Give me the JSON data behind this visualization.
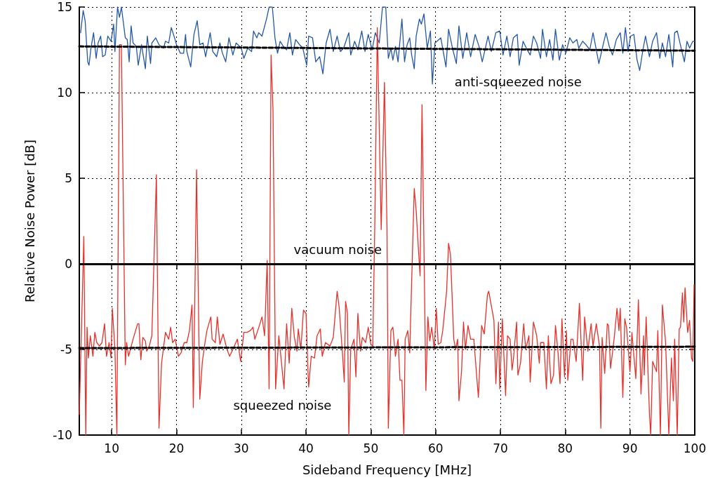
{
  "chart_data": {
    "type": "line",
    "xlabel": "Sideband Frequency [MHz]",
    "ylabel": "Relative Noise Power [dB]",
    "xlim": [
      5,
      100
    ],
    "ylim": [
      -10,
      15
    ],
    "xticks": [
      10,
      20,
      30,
      40,
      50,
      60,
      70,
      80,
      90,
      100
    ],
    "yticks": [
      -10,
      -5,
      0,
      5,
      10,
      15
    ],
    "grid": true,
    "marker": "none",
    "line_style": "solid",
    "series": [
      {
        "color": "#2257a8",
        "x": [
          5.2,
          5.6,
          5.9,
          6.3,
          6.5,
          6.8,
          7.2,
          7.6,
          7.9,
          8.3,
          8.6,
          9.0,
          9.4,
          9.9,
          10.3,
          10.5,
          10.9,
          11.2,
          11.5,
          12.1,
          12.4,
          12.7,
          13.0,
          13.3,
          13.8,
          14.1,
          14.6,
          15.2,
          15.5,
          16.0,
          16.2,
          16.8,
          17.3,
          18.0,
          18.3,
          18.8,
          19.2,
          19.7,
          20.0,
          20.6,
          21.1,
          21.4,
          21.6,
          22.2,
          22.7,
          23.2,
          23.6,
          24.1,
          24.5,
          25.2,
          25.6,
          26.2,
          26.7,
          27.1,
          27.6,
          28.1,
          28.7,
          29.2,
          30.0,
          30.4,
          31.0,
          31.6,
          31.9,
          32.4,
          32.7,
          33.2,
          33.9,
          34.3,
          34.8,
          35.2,
          35.6,
          36.0,
          36.5,
          37.0,
          37.5,
          37.9,
          38.4,
          39.0,
          39.5,
          40.1,
          40.4,
          41.0,
          41.5,
          42.1,
          42.6,
          43.1,
          43.7,
          44.2,
          44.8,
          45.3,
          45.8,
          46.6,
          46.9,
          47.5,
          48.0,
          48.6,
          49.1,
          49.6,
          50.2,
          50.7,
          51.3,
          51.8,
          52.3,
          52.7,
          53.1,
          53.4,
          53.8,
          54.2,
          54.8,
          55.2,
          55.6,
          56.0,
          56.3,
          56.7,
          57.0,
          57.5,
          57.8,
          58.2,
          58.7,
          59.2,
          59.5,
          59.9,
          60.8,
          61.6,
          62.0,
          62.6,
          63.2,
          63.6,
          64.2,
          64.8,
          65.4,
          66.1,
          66.7,
          67.2,
          68.1,
          68.6,
          69.3,
          69.9,
          70.4,
          71.0,
          71.5,
          72.0,
          72.6,
          72.9,
          73.5,
          74.0,
          74.6,
          75.1,
          75.6,
          76.2,
          76.5,
          77.1,
          77.6,
          78.1,
          78.5,
          79.1,
          79.6,
          80.1,
          80.7,
          81.2,
          81.8,
          82.1,
          82.7,
          83.2,
          83.8,
          84.3,
          84.9,
          85.2,
          85.8,
          86.3,
          86.8,
          87.3,
          87.9,
          88.5,
          88.9,
          89.3,
          89.7,
          90.1,
          90.6,
          91.1,
          91.5,
          92.0,
          92.4,
          93.0,
          93.5,
          94.1,
          94.6,
          95.0,
          95.5,
          96.0,
          96.6,
          96.9,
          97.3,
          97.9,
          98.4,
          98.8,
          99.2,
          99.7,
          100
        ],
        "values": [
          13.5,
          14.8,
          14.2,
          11.8,
          11.6,
          12.6,
          13.5,
          12.0,
          12.9,
          13.3,
          12.1,
          12.2,
          13.3,
          13.0,
          14.0,
          12.4,
          15,
          14.4,
          15,
          13.2,
          13.1,
          11.8,
          13.9,
          12.9,
          12.7,
          11.6,
          12.8,
          11.4,
          13.3,
          11.7,
          12.9,
          13.2,
          12.8,
          12.6,
          13.0,
          12.9,
          13.8,
          13.2,
          12.8,
          12.3,
          12.3,
          13.4,
          12.4,
          11.5,
          13.4,
          14.2,
          12.8,
          12.9,
          12.1,
          13.5,
          12.4,
          12.1,
          12.9,
          12.3,
          11.8,
          13.2,
          12.2,
          12.9,
          12.6,
          12.0,
          12.6,
          12.4,
          13.6,
          13.2,
          13.5,
          13.3,
          14.3,
          15,
          15,
          13.2,
          12.3,
          13.0,
          12.7,
          12.5,
          13.5,
          12.2,
          13.1,
          12.8,
          12.6,
          11.6,
          13.3,
          13.2,
          11.8,
          12.1,
          11.1,
          12.9,
          13.7,
          12.4,
          13.3,
          12.4,
          12.6,
          13.5,
          12.2,
          13.0,
          12.5,
          13.6,
          12.4,
          13.4,
          12.5,
          13.5,
          12.9,
          15,
          15,
          12.0,
          12.6,
          11.9,
          12.7,
          11.8,
          14.3,
          11.8,
          12.8,
          13.2,
          12.2,
          11.4,
          13.3,
          14.3,
          14.0,
          14.6,
          12.6,
          13.6,
          10.5,
          12.9,
          13.2,
          11.5,
          13.7,
          12.6,
          11.7,
          13.9,
          12.0,
          13.5,
          12.1,
          13.4,
          12.7,
          11.8,
          13.3,
          12.4,
          13.5,
          13.6,
          12.2,
          13.3,
          12.1,
          13.2,
          13.4,
          11.6,
          13.0,
          12.6,
          12.2,
          13.3,
          12.9,
          12.0,
          13.7,
          12.1,
          13.1,
          11.9,
          13.7,
          11.9,
          12.8,
          12.3,
          13.2,
          12.9,
          13.1,
          12.6,
          13.0,
          12.8,
          12.5,
          13.5,
          12.3,
          11.7,
          12.7,
          13.5,
          12.7,
          12.2,
          13.1,
          13.5,
          12.3,
          13.8,
          12.4,
          13.3,
          13.4,
          11.9,
          11.3,
          12.5,
          13.3,
          12.1,
          13.0,
          13.5,
          12.0,
          12.9,
          12.1,
          13.4,
          11.5,
          13.5,
          13.6,
          12.6,
          11.8,
          13.0,
          12.6,
          13.0,
          13.0
        ]
      },
      {
        "color": "#e8302a",
        "x": [
          5.0,
          5.7,
          6.0,
          6.2,
          6.4,
          6.7,
          7.1,
          7.4,
          7.7,
          8.1,
          8.5,
          8.9,
          9.2,
          9.6,
          9.9,
          10.1,
          10.5,
          10.8,
          11.2,
          11.5,
          12.1,
          12.3,
          12.6,
          13.3,
          14.0,
          14.2,
          14.5,
          14.8,
          15.2,
          15.4,
          15.8,
          16.2,
          16.9,
          17.3,
          17.7,
          18.3,
          18.8,
          19.1,
          19.4,
          19.8,
          20.3,
          20.7,
          21.2,
          21.6,
          22.0,
          22.4,
          22.6,
          23.1,
          23.6,
          24.0,
          24.4,
          24.7,
          25.3,
          25.5,
          26.0,
          26.3,
          26.7,
          27.2,
          27.8,
          28.2,
          28.7,
          29.4,
          29.9,
          30.4,
          30.9,
          31.4,
          31.8,
          32.1,
          32.8,
          33.2,
          33.6,
          34.0,
          34.3,
          34.6,
          34.9,
          35.3,
          35.8,
          36.6,
          37.0,
          37.4,
          37.8,
          38.2,
          38.6,
          38.8,
          39.2,
          39.6,
          40.0,
          40.3,
          40.4,
          40.8,
          41.3,
          41.7,
          42.2,
          42.5,
          43.0,
          43.7,
          44.2,
          44.8,
          45.1,
          45.6,
          45.9,
          46.1,
          46.4,
          46.6,
          46.9,
          47.4,
          47.7,
          48.0,
          48.4,
          48.7,
          49.2,
          49.6,
          50.0,
          50.3,
          50.6,
          51.0,
          51.6,
          52.1,
          52.5,
          52.7,
          53.1,
          53.4,
          53.8,
          54.2,
          54.5,
          54.8,
          55.1,
          55.3,
          55.7,
          56.0,
          56.7,
          57.0,
          57.4,
          57.6,
          57.9,
          58.5,
          58.8,
          59.1,
          59.4,
          59.8,
          60.1,
          60.4,
          60.8,
          61.1,
          61.7,
          62.0,
          62.3,
          62.8,
          63.1,
          63.4,
          63.6,
          64.0,
          64.3,
          64.6,
          65.0,
          65.4,
          65.9,
          66.1,
          66.6,
          67.1,
          67.5,
          68.0,
          68.2,
          69.0,
          69.3,
          69.7,
          69.9,
          70.3,
          70.8,
          71.1,
          71.5,
          71.8,
          72.0,
          72.5,
          72.7,
          73.1,
          73.6,
          73.9,
          74.4,
          74.6,
          75.1,
          75.6,
          76.0,
          76.2,
          76.7,
          77.1,
          77.4,
          77.8,
          78.2,
          78.5,
          78.9,
          79.2,
          79.5,
          79.9,
          80.2,
          80.4,
          80.9,
          81.2,
          81.7,
          82.2,
          82.7,
          83.0,
          83.5,
          84.0,
          84.3,
          84.8,
          85.3,
          85.5,
          85.7,
          86.1,
          86.5,
          86.7,
          87.0,
          87.3,
          87.6,
          88.0,
          88.3,
          88.5,
          88.9,
          89.2,
          89.5,
          90.0,
          90.3,
          90.9,
          91.3,
          91.7,
          92.1,
          92.2,
          92.5,
          93.0,
          93.2,
          93.5,
          94.1,
          94.3,
          94.7,
          95.0,
          95.5,
          96.0,
          96.4,
          96.7,
          96.9,
          97.3,
          97.6,
          97.8,
          98.1,
          98.3,
          98.5,
          98.9,
          99.2,
          99.5,
          99.7,
          99.9
        ],
        "values": [
          -8.8,
          1.6,
          -10,
          -3.7,
          -5.5,
          -4.2,
          -5.4,
          -4.0,
          -4.6,
          -4.8,
          -4.6,
          -3.5,
          -5.4,
          -4.6,
          -5.5,
          -2.6,
          -5.0,
          -10,
          12.8,
          12.8,
          -5.9,
          -4.6,
          -5.4,
          -4.4,
          -3.5,
          -3.5,
          -5.6,
          -4.3,
          -4.5,
          -5.1,
          -4.8,
          -4.2,
          5.2,
          -9.6,
          -5.8,
          -4.0,
          -4.4,
          -3.7,
          -4.6,
          -4.4,
          -5.4,
          -5.2,
          -4.6,
          -4.6,
          -3.9,
          -2.4,
          -8.4,
          5.5,
          -7.9,
          -5.7,
          -4.6,
          -3.9,
          -3.1,
          -4.4,
          -4.6,
          -3.1,
          -4.7,
          -4.1,
          -5.0,
          -5.4,
          -5.0,
          -4.4,
          -5.7,
          -4.0,
          -4.0,
          -3.9,
          -3.7,
          -4.4,
          -3.6,
          -3.1,
          -4.2,
          0.2,
          -7.3,
          12.2,
          9.0,
          -7.3,
          -4.2,
          -7.3,
          -3.5,
          -5.8,
          -2.6,
          -4.3,
          -5.1,
          -3.8,
          -5.0,
          -2.7,
          -2.9,
          -6.3,
          -7.2,
          -5.4,
          -5.5,
          -4.2,
          -3.8,
          -5.4,
          -4.6,
          -4.8,
          -4.3,
          -1.6,
          -2.5,
          -5.1,
          -6.9,
          -2.2,
          -2.9,
          -10,
          -5.0,
          -4.4,
          -6.6,
          -2.9,
          -5.1,
          -4.3,
          -4.6,
          -3.7,
          -4.7,
          -4.8,
          2.0,
          13.8,
          2.0,
          10.6,
          2.0,
          -9.6,
          -3.9,
          -3.7,
          -5.4,
          -4.4,
          -6.8,
          -6.8,
          -10,
          -4.4,
          -3.9,
          -5.2,
          4.4,
          3.1,
          0.5,
          -0.7,
          9.3,
          -7.4,
          -3.1,
          -4.5,
          -3.7,
          -5.0,
          -2.6,
          -4.7,
          -4.6,
          -3.9,
          -1.6,
          1.2,
          0.5,
          -4.4,
          -5.0,
          -4.4,
          -8.0,
          -6.3,
          -3.4,
          -5.0,
          -3.6,
          -4.4,
          -4.4,
          -5.4,
          -7.8,
          -3.6,
          -4.1,
          -1.8,
          -1.6,
          -3.3,
          -7.0,
          -3.4,
          -7.3,
          -3.2,
          -7.7,
          -4.2,
          -4.4,
          -6.2,
          -5.6,
          -3.4,
          -6.5,
          -5.8,
          -3.5,
          -5.0,
          -4.2,
          -6.9,
          -3.4,
          -4.2,
          -5.8,
          -4.6,
          -4.6,
          -7.3,
          -4.2,
          -7.0,
          -6.5,
          -3.6,
          -5.2,
          -7.0,
          -3.2,
          -6.6,
          -3.9,
          -6.8,
          -4.4,
          -4.4,
          -5.7,
          -2.3,
          -6.8,
          -3.1,
          -5.1,
          -3.5,
          -4.8,
          -3.5,
          -4.8,
          -9.6,
          -4.3,
          -6.4,
          -3.5,
          -3.6,
          -6.1,
          -5.2,
          -4.2,
          -2.6,
          -3.9,
          -2.6,
          -7.8,
          -3.2,
          -3.8,
          -6.3,
          -4.0,
          -6.7,
          -2.1,
          -7.6,
          -4.2,
          -6.5,
          -3.1,
          -8.7,
          -10,
          -5.7,
          -6.3,
          -3.9,
          -10,
          -2.4,
          -4.6,
          -10,
          -5.5,
          -8.0,
          -4.4,
          -10,
          -3.8,
          -3.7,
          -1.7,
          -3.4,
          -1.4,
          -4.0,
          -3.3,
          -5.5,
          -5.7,
          -1.2
        ]
      },
      {
        "type": "line",
        "color": "#000000",
        "line_style": "dashed",
        "x": [
          5,
          100
        ],
        "values": [
          12.7,
          12.45
        ]
      },
      {
        "type": "line",
        "color": "#000000",
        "line_style": "dashed",
        "x": [
          5,
          100
        ],
        "values": [
          -4.92,
          -4.84
        ]
      }
    ],
    "ref_lines": [
      {
        "axis": "y",
        "value": 0,
        "label": "vacuum noise",
        "color": "#000000",
        "line_style": "solid"
      }
    ],
    "annotations": [
      "anti-squeezed noise",
      "squeezed noise"
    ]
  }
}
